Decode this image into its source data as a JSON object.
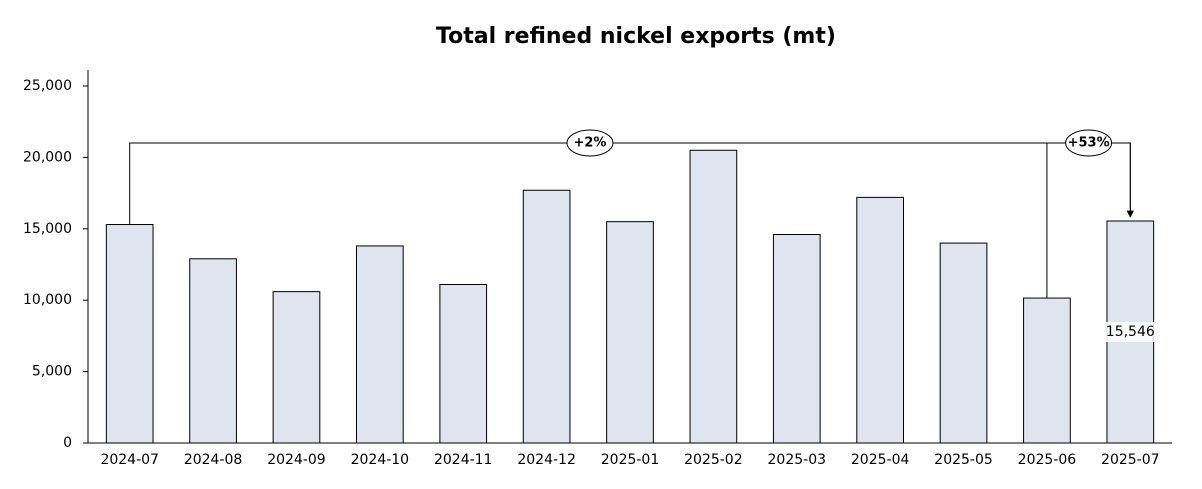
{
  "chart_data": {
    "type": "bar",
    "title": "Total refined nickel exports (mt)",
    "categories": [
      "2024-07",
      "2024-08",
      "2024-09",
      "2024-10",
      "2024-11",
      "2024-12",
      "2025-01",
      "2025-02",
      "2025-03",
      "2025-04",
      "2025-05",
      "2025-06",
      "2025-07"
    ],
    "values": [
      15300,
      12900,
      10600,
      13800,
      11100,
      17700,
      15500,
      20500,
      14600,
      17200,
      14000,
      10150,
      15546
    ],
    "value_labels": [
      null,
      null,
      null,
      null,
      null,
      null,
      null,
      null,
      null,
      null,
      null,
      null,
      "15,546"
    ],
    "color": "#dfe4ee",
    "ylim": [
      0,
      25000
    ],
    "yticks": [
      0,
      {
        "value": 5000,
        "label": "5,000"
      },
      {
        "value": 10000,
        "label": "10,000"
      },
      {
        "value": 15000,
        "label": "15,000"
      },
      {
        "value": 20000,
        "label": "20,000"
      },
      {
        "value": 25000,
        "label": "25,000"
      }
    ],
    "annotations": [
      "+2%",
      "+53%"
    ]
  }
}
